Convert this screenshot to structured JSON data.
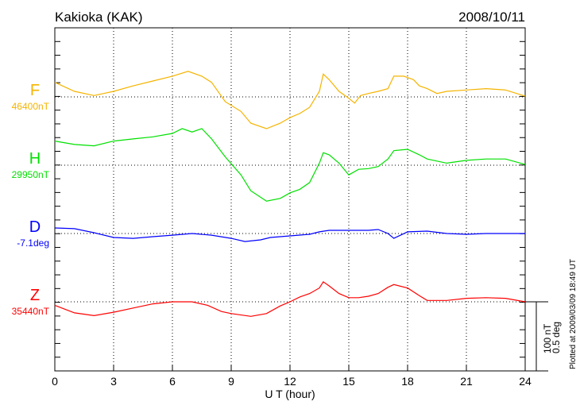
{
  "chart_data": {
    "type": "line",
    "title": "Kakioka (KAK)",
    "date": "2008/10/11",
    "xlabel": "U T (hour)",
    "xlim": [
      0,
      24
    ],
    "xticks": [
      "0",
      "3",
      "6",
      "9",
      "12",
      "15",
      "18",
      "21",
      "24"
    ],
    "scale_label_1": "100 nT",
    "scale_label_2": "0.5 deg",
    "plotted_note": "Plotted at 2009/03/09 18:49 UT",
    "series": [
      {
        "name": "F",
        "baseline_label": "46400nT",
        "color": "#f5b400",
        "unit_per_scale": 100,
        "x": [
          0,
          1,
          2,
          3,
          4,
          5,
          6,
          6.8,
          7.5,
          8,
          8.7,
          9.5,
          10,
          10.8,
          11.5,
          12,
          12.5,
          13,
          13.5,
          13.7,
          14,
          14.5,
          15,
          15.3,
          15.6,
          16,
          16.5,
          17,
          17.3,
          17.8,
          18.3,
          18.6,
          19,
          19.5,
          20,
          21,
          22,
          23,
          24
        ],
        "y": [
          21,
          8,
          2,
          8,
          16,
          23,
          30,
          37,
          30,
          21,
          -7,
          -21,
          -38,
          -46,
          -38,
          -30,
          -24,
          -15,
          8,
          33,
          25,
          8,
          -2,
          -9,
          2,
          5,
          8,
          12,
          30,
          30,
          25,
          16,
          12,
          5,
          8,
          10,
          12,
          10,
          1
        ]
      },
      {
        "name": "H",
        "baseline_label": "29950nT",
        "color": "#00e000",
        "unit_per_scale": 100,
        "x": [
          0,
          1,
          2,
          3,
          4,
          5,
          6,
          6.5,
          7,
          7.5,
          8,
          8.7,
          9.5,
          10,
          10.8,
          11.5,
          12,
          12.5,
          13,
          13.5,
          13.7,
          14,
          14.5,
          15,
          15.5,
          16,
          16.5,
          17,
          17.3,
          18,
          18.6,
          19,
          20,
          21,
          22,
          23,
          24
        ],
        "y": [
          35,
          30,
          28,
          35,
          38,
          41,
          46,
          53,
          48,
          53,
          38,
          12,
          -14,
          -37,
          -52,
          -48,
          -40,
          -35,
          -25,
          3,
          18,
          15,
          3,
          -14,
          -6,
          -5,
          -2,
          9,
          21,
          23,
          15,
          9,
          3,
          7,
          9,
          9,
          1
        ]
      },
      {
        "name": "D",
        "baseline_label": "-7.1deg",
        "color": "#0000ff",
        "unit_per_scale": 0.5,
        "x": [
          0,
          1,
          2,
          3,
          4,
          5,
          6,
          7,
          8,
          9,
          9.7,
          10.5,
          11,
          12,
          13,
          13.5,
          14,
          15,
          16,
          16.5,
          17,
          17.3,
          18,
          19,
          20,
          21,
          22,
          23,
          24
        ],
        "y": [
          0.04,
          0.035,
          0.006,
          -0.029,
          -0.035,
          -0.023,
          -0.012,
          0,
          -0.012,
          -0.035,
          -0.058,
          -0.046,
          -0.029,
          -0.017,
          -0.006,
          0.012,
          0.023,
          0.023,
          0.023,
          0.029,
          0,
          -0.035,
          0.012,
          0.017,
          0,
          -0.006,
          0,
          0,
          0
        ]
      },
      {
        "name": "Z",
        "baseline_label": "35440nT",
        "color": "#ff0000",
        "unit_per_scale": 100,
        "x": [
          0,
          1,
          2,
          3,
          4,
          5,
          6,
          7,
          7.8,
          8.5,
          9,
          10,
          10.8,
          11.5,
          12,
          12.5,
          13,
          13.5,
          13.7,
          14,
          14.5,
          15,
          15.5,
          16,
          16.5,
          17,
          17.3,
          18,
          18.6,
          19,
          20,
          21,
          22,
          23,
          24
        ],
        "y": [
          -5,
          -16,
          -20,
          -15,
          -9,
          -3,
          0,
          0,
          -5,
          -14,
          -17,
          -21,
          -17,
          -6,
          0,
          7,
          12,
          20,
          29,
          23,
          12,
          6,
          6,
          8,
          12,
          21,
          25,
          20,
          9,
          2,
          2,
          5,
          6,
          5,
          0
        ]
      }
    ]
  }
}
